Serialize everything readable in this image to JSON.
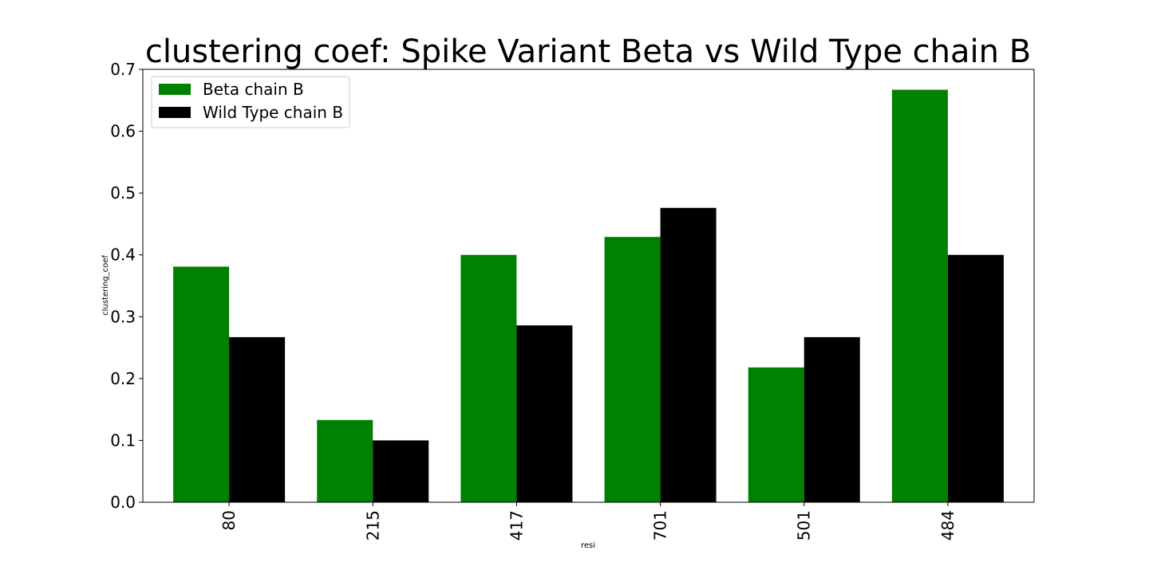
{
  "chart_data": {
    "type": "bar",
    "title": "clustering coef: Spike Variant Beta vs Wild Type chain B",
    "xlabel": "resi",
    "ylabel": "clustering_coef",
    "categories": [
      "80",
      "215",
      "417",
      "701",
      "501",
      "484"
    ],
    "series": [
      {
        "name": "Beta chain B",
        "color": "#008000",
        "values": [
          0.381,
          0.133,
          0.4,
          0.429,
          0.218,
          0.667
        ]
      },
      {
        "name": "Wild Type chain B",
        "color": "#000000",
        "values": [
          0.267,
          0.1,
          0.286,
          0.476,
          0.267,
          0.4
        ]
      }
    ],
    "ylim": [
      0,
      0.7
    ],
    "yticks": [
      "0.0",
      "0.1",
      "0.2",
      "0.3",
      "0.4",
      "0.5",
      "0.6",
      "0.7"
    ],
    "legend_position": "upper-left",
    "grid": false
  }
}
